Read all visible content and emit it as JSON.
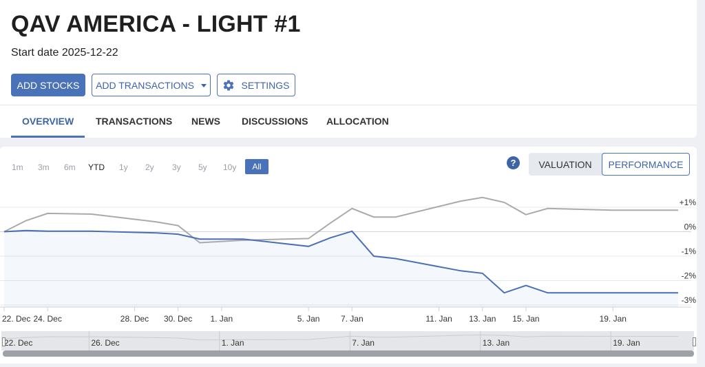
{
  "portfolio": {
    "title": "QAV AMERICA - LIGHT #1",
    "start_date_label": "Start date 2025-12-22"
  },
  "actions": {
    "add_stocks": "ADD STOCKS",
    "add_transactions": "ADD TRANSACTIONS",
    "settings": "SETTINGS",
    "settings_icon": "gear-icon",
    "dropdown_icon": "caret-down-icon"
  },
  "tabs": [
    {
      "label": "OVERVIEW",
      "active": true
    },
    {
      "label": "TRANSACTIONS"
    },
    {
      "label": "NEWS"
    },
    {
      "label": "DISCUSSIONS"
    },
    {
      "label": "ALLOCATION"
    }
  ],
  "range_selector": {
    "options": [
      "1m",
      "3m",
      "6m",
      "YTD",
      "1y",
      "2y",
      "3y",
      "5y",
      "10y",
      "All"
    ],
    "selected": "All"
  },
  "help_icon": "?",
  "view_toggle": {
    "options": [
      "VALUATION",
      "PERFORMANCE"
    ],
    "selected": "PERFORMANCE"
  },
  "colors": {
    "accent": "#4a72b8",
    "benchmark_line": "#aaaaaa",
    "portfolio_line": "#4a6fb5"
  },
  "chart_data": {
    "type": "line",
    "ylim": [
      -3,
      1.5
    ],
    "y_ticks": [
      1,
      0,
      -1,
      -2,
      -3
    ],
    "y_tick_labels": [
      "+1%",
      "0%",
      "-1%",
      "-2%",
      "-3%"
    ],
    "x_tick_labels": [
      "22. Dec",
      "24. Dec",
      "28. Dec",
      "30. Dec",
      "1. Jan",
      "5. Jan",
      "7. Jan",
      "11. Jan",
      "13. Jan",
      "15. Jan",
      "19. Jan"
    ],
    "x": [
      "2025-12-22",
      "2025-12-23",
      "2025-12-24",
      "2025-12-26",
      "2025-12-29",
      "2025-12-30",
      "2025-12-31",
      "2026-01-02",
      "2026-01-05",
      "2026-01-06",
      "2026-01-07",
      "2026-01-08",
      "2026-01-09",
      "2026-01-12",
      "2026-01-13",
      "2026-01-14",
      "2026-01-15",
      "2026-01-16",
      "2026-01-19",
      "2026-01-20",
      "2026-01-21",
      "2026-01-22"
    ],
    "series": [
      {
        "values": [
          0.0,
          0.45,
          0.75,
          0.72,
          0.4,
          0.25,
          -0.45,
          -0.35,
          -0.28,
          0.35,
          0.95,
          0.6,
          0.6,
          1.25,
          1.4,
          1.2,
          0.7,
          0.95,
          0.88,
          0.88,
          0.88,
          0.88
        ]
      },
      {
        "values": [
          0.0,
          0.05,
          0.02,
          0.02,
          -0.05,
          -0.1,
          -0.3,
          -0.3,
          -0.6,
          -0.25,
          0.02,
          -1.0,
          -1.1,
          -1.6,
          -1.7,
          -2.5,
          -2.2,
          -2.5,
          -2.5,
          -2.5,
          -2.5,
          -2.5
        ]
      }
    ],
    "navigator_labels": [
      "22. Dec",
      "26. Dec",
      "1. Jan",
      "7. Jan",
      "13. Jan",
      "19. Jan"
    ]
  }
}
